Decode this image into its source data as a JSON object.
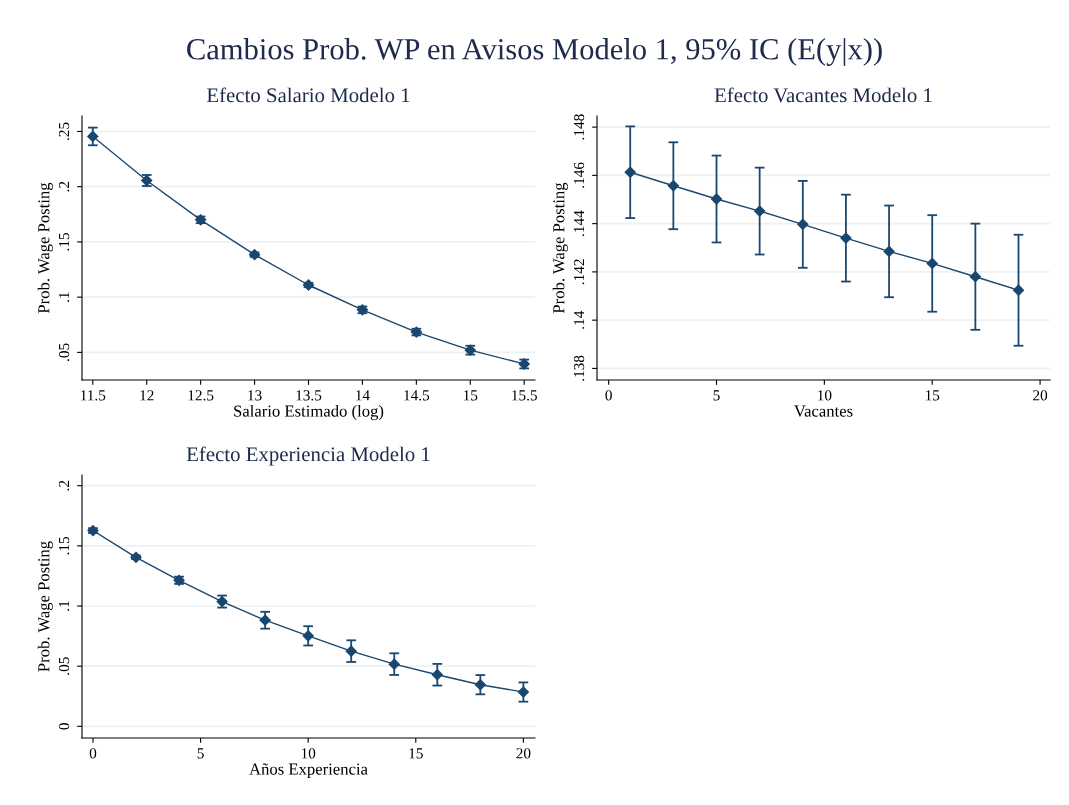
{
  "chart_data": [
    {
      "type": "line",
      "title": "Efecto Salario Modelo 1",
      "xlabel": "Salario Estimado (log)",
      "ylabel": "Prob. Wage Posting",
      "annotations": [
        "Cambios Prob. WP en Avisos Modelo 1, 95% IC (E(y|x))"
      ],
      "x": [
        11.5,
        12,
        12.5,
        13,
        13.5,
        14,
        14.5,
        15,
        15.5
      ],
      "series": [
        {
          "color": "#1a476f",
          "values": [
            0.2455,
            0.2056,
            0.17,
            0.1385,
            0.111,
            0.0885,
            0.0684,
            0.052,
            0.0395
          ],
          "errors": [
            0.008,
            0.005,
            0.003,
            0.002,
            0.002,
            0.003,
            0.003,
            0.004,
            0.004
          ]
        }
      ],
      "xlim": [
        11.4,
        15.6
      ],
      "ylim": [
        0.025,
        0.264
      ],
      "xticks": [
        11.5,
        12,
        12.5,
        13,
        13.5,
        14,
        14.5,
        15,
        15.5
      ],
      "yticks": [
        {
          "value": 0.05,
          "label": ".05"
        },
        {
          "value": 0.1,
          "label": ".1"
        },
        {
          "value": 0.15,
          "label": ".15"
        },
        {
          "value": 0.2,
          "label": ".2"
        },
        {
          "value": 0.25,
          "label": ".25"
        }
      ],
      "grid": "y",
      "marker": "diamond"
    },
    {
      "type": "line",
      "title": "Efecto Vacantes Modelo 1",
      "xlabel": "Vacantes",
      "ylabel": "Prob. Wage Posting",
      "x": [
        1,
        3,
        5,
        7,
        9,
        11,
        13,
        15,
        17,
        19
      ],
      "series": [
        {
          "color": "#1a476f",
          "values": [
            0.14613,
            0.14557,
            0.14502,
            0.14452,
            0.14397,
            0.1434,
            0.14285,
            0.14235,
            0.1418,
            0.14124
          ],
          "errors": [
            0.0019,
            0.0018,
            0.0018,
            0.0018,
            0.0018,
            0.0018,
            0.0019,
            0.002,
            0.0022,
            0.0023
          ]
        }
      ],
      "xlim": [
        -0.54,
        20.46
      ],
      "ylim": [
        0.13752,
        0.14846
      ],
      "xticks": [
        0,
        5,
        10,
        15,
        20
      ],
      "yticks": [
        {
          "value": 0.138,
          "label": ".138"
        },
        {
          "value": 0.14,
          "label": ".14"
        },
        {
          "value": 0.142,
          "label": ".142"
        },
        {
          "value": 0.144,
          "label": ".144"
        },
        {
          "value": 0.146,
          "label": ".146"
        },
        {
          "value": 0.148,
          "label": ".148"
        }
      ],
      "grid": "y",
      "marker": "diamond"
    },
    {
      "type": "line",
      "title": "Efecto Experiencia Modelo 1",
      "xlabel": "Años Experiencia",
      "ylabel": "Prob. Wage Posting",
      "x": [
        0,
        2,
        4,
        6,
        8,
        10,
        12,
        14,
        16,
        18,
        20
      ],
      "series": [
        {
          "color": "#1a476f",
          "values": [
            0.1627,
            0.1405,
            0.1214,
            0.1037,
            0.0882,
            0.0752,
            0.0625,
            0.0517,
            0.0429,
            0.0346,
            0.0285
          ],
          "errors": [
            0.002,
            0.0015,
            0.003,
            0.005,
            0.007,
            0.008,
            0.009,
            0.009,
            0.009,
            0.008,
            0.008
          ]
        }
      ],
      "xlim": [
        -0.51,
        20.54
      ],
      "ylim": [
        -0.0097,
        0.2089
      ],
      "xticks": [
        0,
        5,
        10,
        15,
        20
      ],
      "yticks": [
        0,
        {
          "value": 0.05,
          "label": ".05"
        },
        {
          "value": 0.1,
          "label": ".1"
        },
        {
          "value": 0.15,
          "label": ".15"
        },
        {
          "value": 0.2,
          "label": ".2"
        }
      ],
      "grid": "y",
      "marker": "diamond"
    }
  ]
}
